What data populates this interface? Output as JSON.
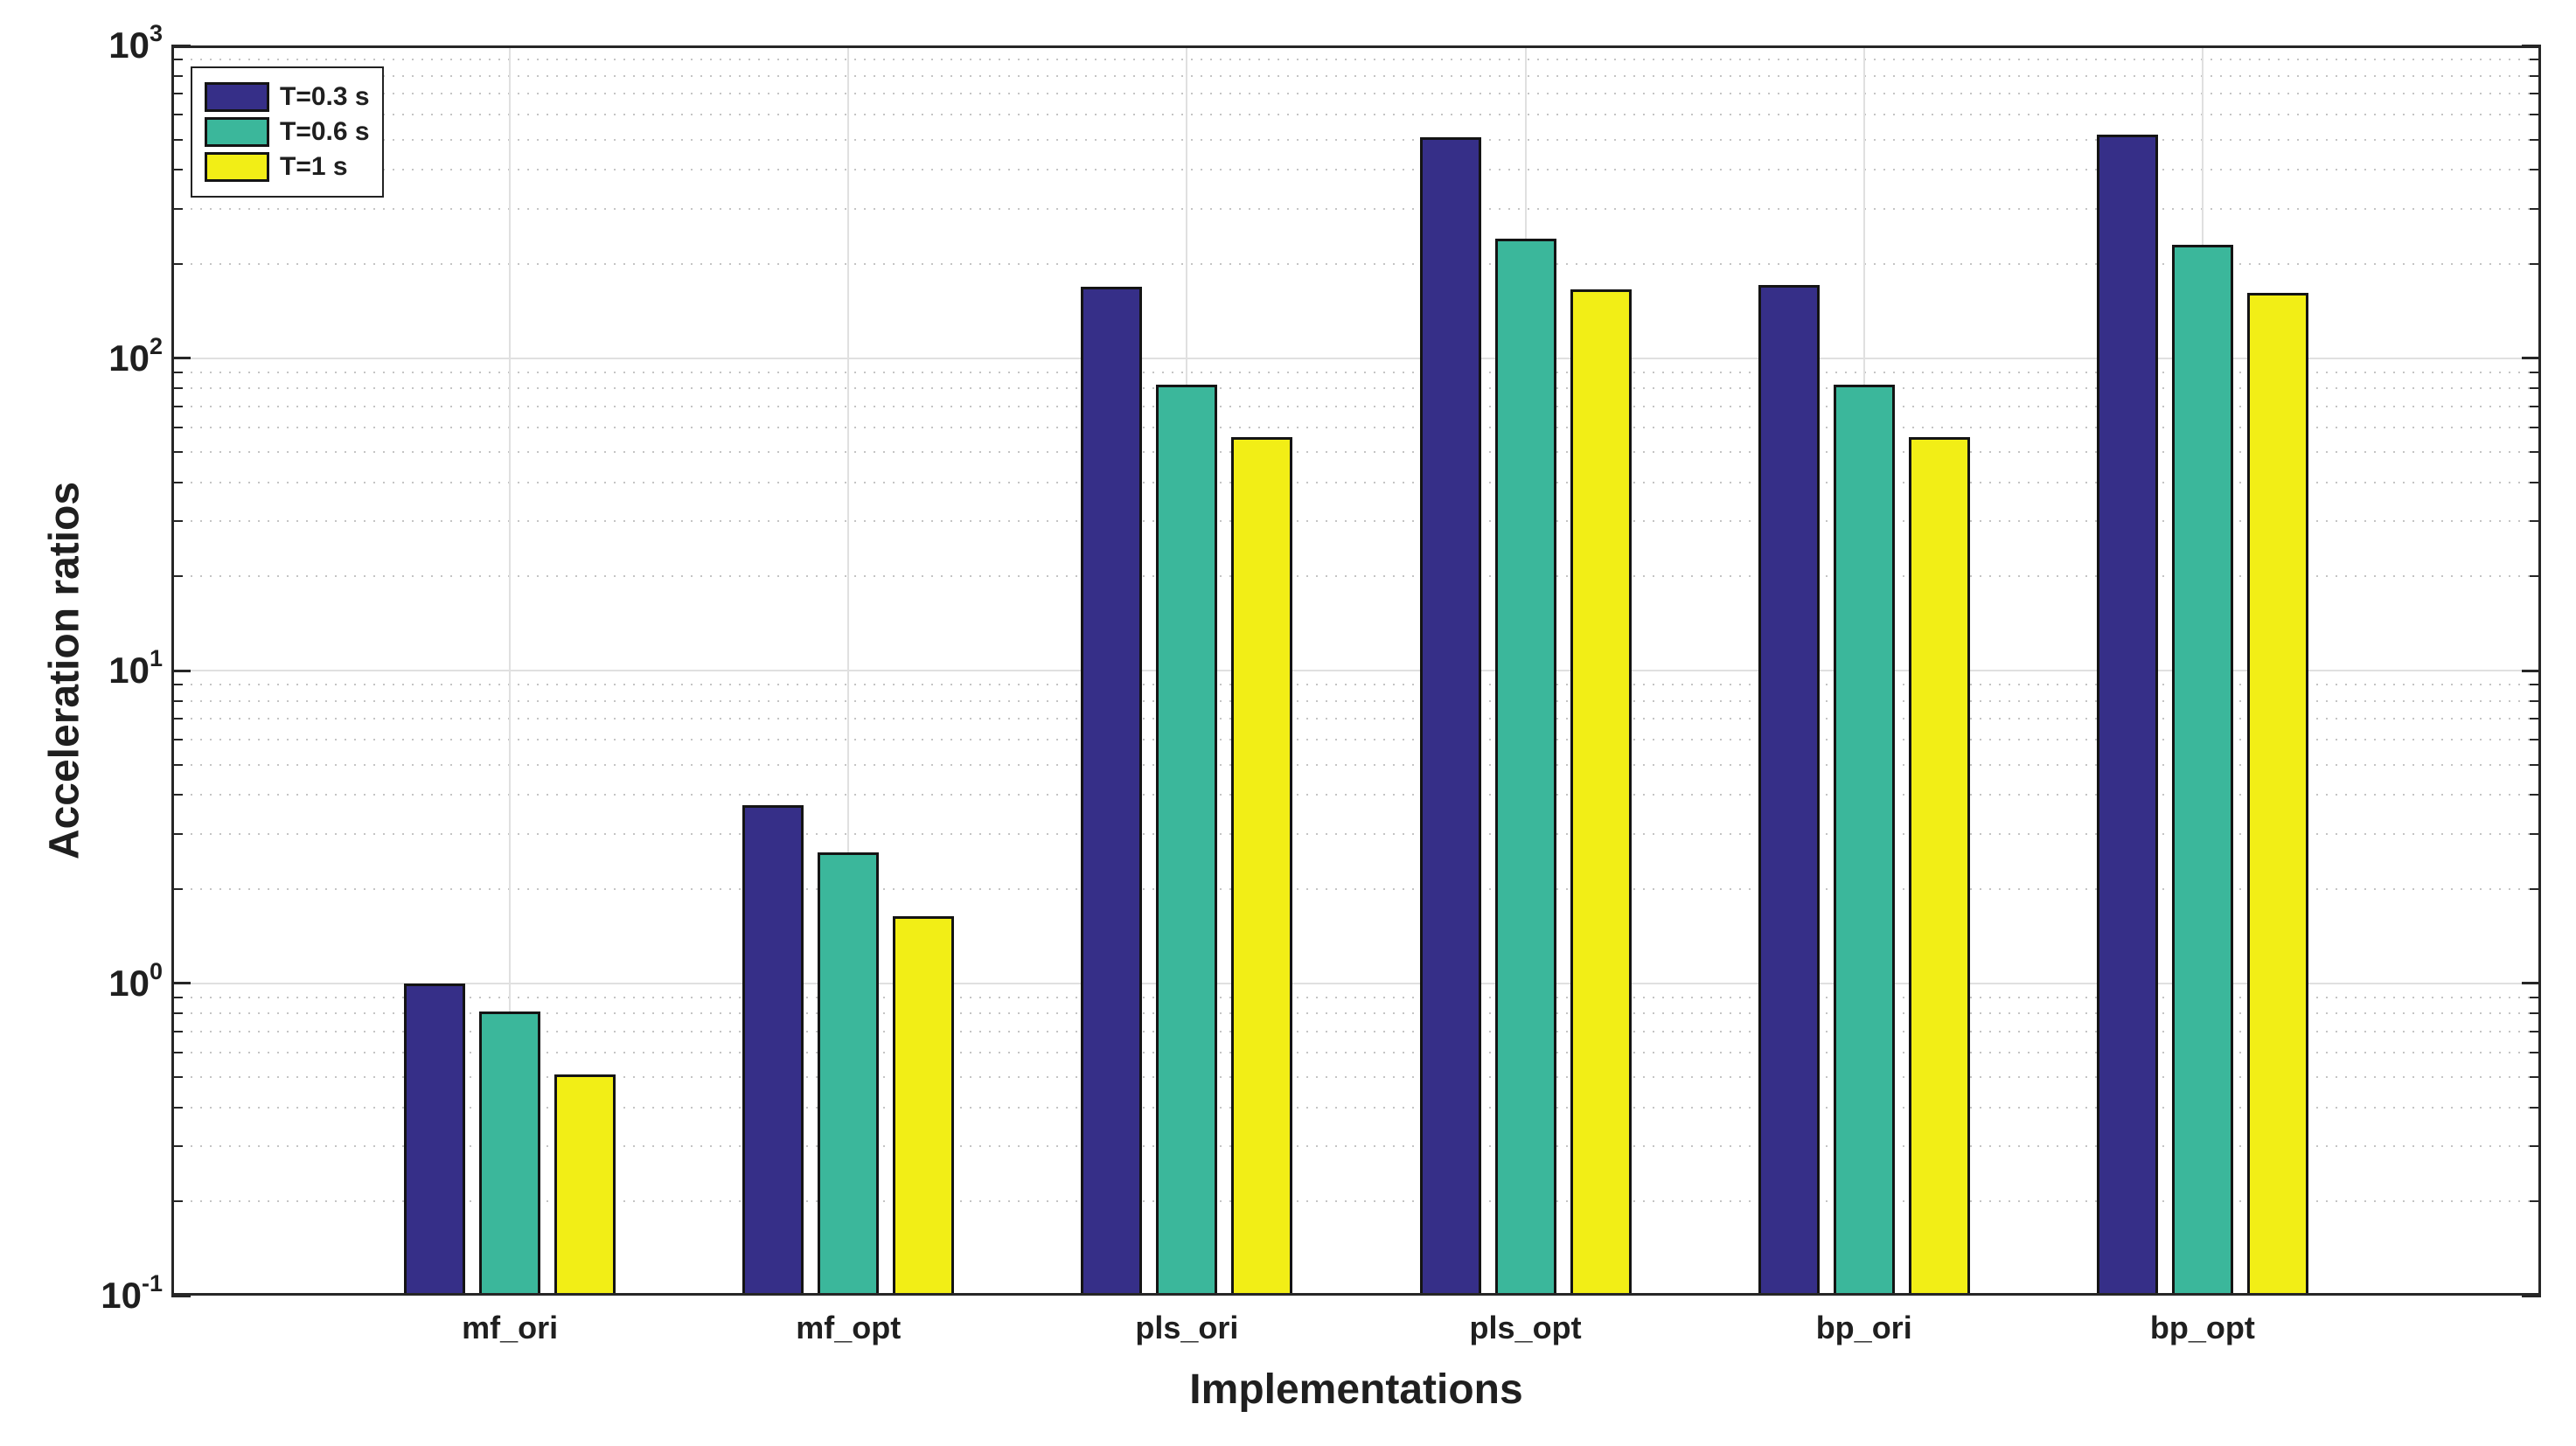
{
  "chart_data": {
    "type": "bar",
    "yscale": "log",
    "title": "",
    "xlabel": "Implementations",
    "ylabel": "Acceleration ratios",
    "categories": [
      "mf_ori",
      "mf_opt",
      "pls_ori",
      "pls_opt",
      "bp_ori",
      "bp_opt"
    ],
    "series": [
      {
        "name": "T=0.3 s",
        "color": "#362F88",
        "values": [
          1.0,
          3.7,
          169,
          508,
          171,
          518
        ]
      },
      {
        "name": "T=0.6 s",
        "color": "#3BB79B",
        "values": [
          0.81,
          2.62,
          82,
          241,
          82,
          230
        ]
      },
      {
        "name": "T=1 s",
        "color": "#F2EE16",
        "values": [
          0.51,
          1.64,
          56,
          166,
          56,
          162
        ]
      }
    ],
    "ylim": [
      0.1,
      1000
    ],
    "ytick_exponents": [
      3,
      2,
      1,
      0,
      -1
    ],
    "ytick_base": "10",
    "grid": {
      "y_major": "solid",
      "y_minor": "dotted",
      "x_major": "solid"
    },
    "legend_position": "top-left",
    "colors": {
      "axis": "#262626",
      "grid_major": "#e0e0e0",
      "grid_minor": "#c4c4c4",
      "text": "#1f1f1f",
      "background": "#ffffff"
    }
  }
}
